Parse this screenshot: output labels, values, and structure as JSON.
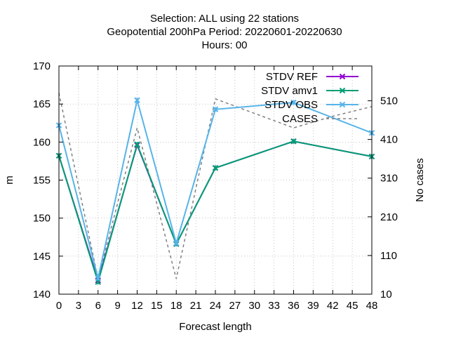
{
  "chart_data": {
    "type": "line",
    "title_lines": [
      "Selection: ALL using     22 stations",
      "Geopotential 200hPa   Period: 20220601-20220630",
      "Hours:  00"
    ],
    "xlabel": "Forecast length",
    "ylabel": "m",
    "y2label": "No cases",
    "xlim": [
      0,
      48
    ],
    "ylim": [
      140,
      170
    ],
    "y2lim": [
      10,
      600
    ],
    "xticks": [
      0,
      3,
      6,
      9,
      12,
      15,
      18,
      21,
      24,
      27,
      30,
      33,
      36,
      39,
      42,
      45,
      48
    ],
    "yticks": [
      140,
      145,
      150,
      155,
      160,
      165,
      170
    ],
    "y2ticks": [
      10,
      110,
      210,
      310,
      410,
      510
    ],
    "grid": true,
    "legend_position": "top-right",
    "x": [
      0,
      6,
      12,
      18,
      24,
      36,
      48
    ],
    "series": [
      {
        "name": "STDV REF",
        "color": "#9400d3",
        "marker": "x",
        "values": [
          158.2,
          141.8,
          159.6,
          146.6,
          156.6,
          160.1,
          158.1
        ]
      },
      {
        "name": "STDV amv1",
        "color": "#009e73",
        "marker": "x",
        "values": [
          158.2,
          141.6,
          159.7,
          146.6,
          156.6,
          160.1,
          158.1
        ]
      },
      {
        "name": "STDV OBS",
        "color": "#56b4e9",
        "marker": "x",
        "values": [
          162.2,
          142.1,
          165.5,
          146.7,
          164.3,
          165.2,
          161.2
        ]
      }
    ],
    "cases": {
      "name": "CASES",
      "color": "#808080",
      "dash": true,
      "x": [
        0,
        6,
        12,
        18,
        24,
        36,
        42,
        48
      ],
      "values": [
        530,
        50,
        440,
        50,
        515,
        440,
        470,
        495
      ]
    }
  }
}
